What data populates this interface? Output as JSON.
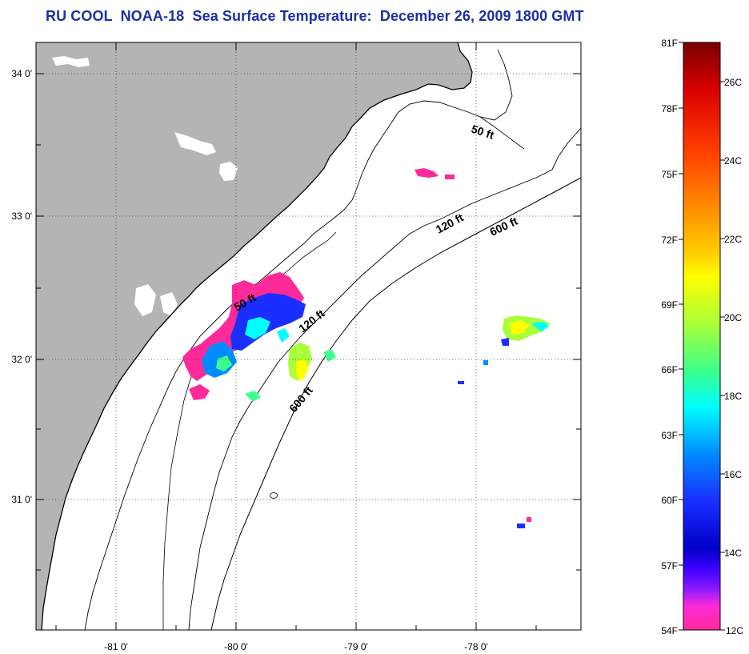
{
  "title": "RU COOL  NOAA-18  Sea Surface Temperature:  December 26, 2009 1800 GMT",
  "axes": {
    "lat_labels": [
      "34 0'",
      "33 0'",
      "32 0'",
      "31 0'"
    ],
    "lon_labels": [
      "-81 0'",
      "-80 0'",
      "-79 0'",
      "-78 0'"
    ]
  },
  "depth_labels": [
    "50 ft",
    "120 ft",
    "600 ft",
    "50 ft",
    "120 ft",
    "600 ft"
  ],
  "colorbar": {
    "fahrenheit": [
      "81F",
      "78F",
      "75F",
      "72F",
      "69F",
      "66F",
      "63F",
      "60F",
      "57F",
      "54F"
    ],
    "celsius": [
      "26C",
      "24C",
      "22C",
      "20C",
      "18C",
      "16C",
      "14C",
      "12C"
    ],
    "colors_top_to_bottom": [
      "#7a0000",
      "#d80000",
      "#ff3a00",
      "#ff8c00",
      "#ffd000",
      "#ffff00",
      "#a8ff3a",
      "#3aff8c",
      "#00ffff",
      "#008cff",
      "#1a2fff",
      "#0000c8",
      "#8a1aff",
      "#ff2ad8",
      "#ff2a9a"
    ]
  },
  "colors": {
    "land": "#b4b4b4",
    "title": "#1a2fa8"
  }
}
